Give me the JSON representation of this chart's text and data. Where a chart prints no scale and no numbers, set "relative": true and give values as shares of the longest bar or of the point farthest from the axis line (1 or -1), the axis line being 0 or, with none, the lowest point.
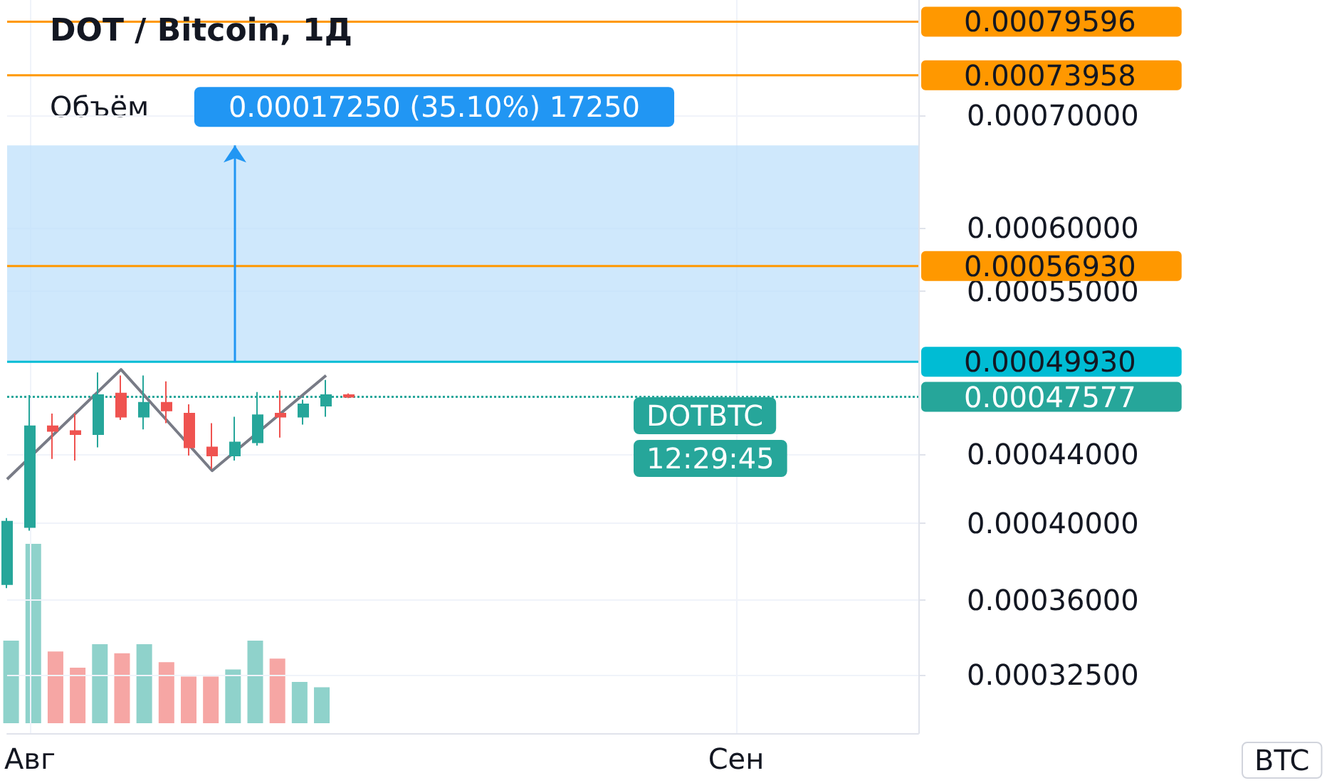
{
  "chart_data": [
    {
      "type": "candlestick",
      "title": "DOT / Bitcoin, 1Д",
      "categories": [
        null,
        "Авг",
        null,
        null,
        null,
        null,
        null,
        null,
        null,
        null,
        null,
        null,
        null,
        null,
        null,
        null,
        null,
        null,
        null,
        null,
        null,
        null,
        null,
        null,
        null,
        null,
        null,
        null,
        null,
        null,
        null,
        null,
        "Сен",
        null,
        null,
        null,
        null,
        null,
        null,
        null,
        null
      ],
      "ohlc": [
        [
          0.000368,
          0.000403,
          0.000366,
          0.000401
        ],
        [
          0.000398,
          0.000477,
          0.000396,
          0.000457
        ],
        [
          0.000457,
          0.000465,
          0.000437,
          0.000454
        ],
        [
          0.000454,
          0.000465,
          0.000436,
          0.000452
        ],
        [
          0.000452,
          0.000492,
          0.000444,
          0.000477
        ],
        [
          0.000478,
          0.00049,
          0.000461,
          0.000463
        ],
        [
          0.000463,
          0.00049,
          0.000455,
          0.000472
        ],
        [
          0.000472,
          0.000486,
          0.000459,
          0.000467
        ],
        [
          0.000465,
          0.000471,
          0.000439,
          0.000444
        ],
        [
          0.000444,
          0.000459,
          0.000431,
          0.000439
        ],
        [
          0.000439,
          0.000463,
          0.000436,
          0.000447
        ],
        [
          0.000447,
          0.000479,
          0.000445,
          0.000464
        ],
        [
          0.000465,
          0.00048,
          0.00045,
          0.000463
        ],
        [
          0.000463,
          0.000474,
          0.000458,
          0.000471
        ],
        [
          0.00047,
          0.000487,
          0.000463,
          0.000477
        ],
        [
          0.000477,
          0.000478,
          0.000475,
          0.00047577
        ],
        null,
        null,
        null,
        null,
        null,
        null,
        null,
        null,
        null,
        null,
        null,
        null,
        null,
        null,
        null,
        null,
        null,
        null,
        null,
        null,
        null,
        null,
        null,
        null,
        null
      ],
      "colors": [
        "#26a69a",
        "#26a69a",
        "#ef5350",
        "#ef5350",
        "#26a69a",
        "#ef5350",
        "#26a69a",
        "#ef5350",
        "#ef5350",
        "#ef5350",
        "#26a69a",
        "#26a69a",
        "#ef5350",
        "#26a69a",
        "#26a69a",
        "#ef5350",
        null,
        null,
        null,
        null,
        null,
        null,
        null,
        null,
        null,
        null,
        null,
        null,
        null,
        null,
        null,
        null,
        null,
        null,
        null,
        null,
        null,
        null,
        null,
        null,
        null
      ],
      "series": [
        {
          "type": "line",
          "color": "#787b86",
          "values": [
            0.000425,
            null,
            null,
            null,
            null,
            0.000494,
            null,
            null,
            null,
            0.00043,
            null,
            null,
            null,
            null,
            0.00049,
            null,
            null,
            null,
            null,
            null,
            null,
            null,
            null,
            null,
            null,
            null,
            null,
            null,
            null,
            null,
            null,
            null,
            null,
            null,
            null,
            null,
            null,
            null,
            null,
            null,
            null
          ]
        }
      ],
      "ylim": [
        0.0003,
        0.00082
      ],
      "yticks": [
        {
          "value": 0.000325,
          "label": "0.00032500"
        },
        {
          "value": 0.00036,
          "label": "0.00036000"
        },
        {
          "value": 0.0004,
          "label": "0.00040000"
        },
        {
          "value": 0.00044,
          "label": "0.00044000"
        },
        {
          "value": 0.00055,
          "label": "0.00055000"
        },
        {
          "value": 0.0006,
          "label": "0.00060000"
        },
        {
          "value": 0.0007,
          "label": "0.00070000"
        }
      ],
      "log": true,
      "grid": true,
      "ref_lines": [
        {
          "axis": "y",
          "value": 0.00079596,
          "label": "0.00079596",
          "color": "#ff9800"
        },
        {
          "axis": "y",
          "value": 0.00073958,
          "label": "0.00073958",
          "color": "#ff9800"
        },
        {
          "axis": "y",
          "value": 0.0005693,
          "label": "0.00056930",
          "color": "#ff9800"
        },
        {
          "axis": "y",
          "value": 0.0004993,
          "label": "0.00049930",
          "color": "#00bcd4"
        },
        {
          "axis": "y",
          "value": 0.00047577,
          "label": "0.00047577",
          "color": "#26a69a",
          "line_style": "dotted"
        }
      ],
      "bands": [
        {
          "axis": "y",
          "from": 0.0004993,
          "to": 0.0006718,
          "color": "#bbdefb"
        }
      ],
      "annotations": [
        "DOTBTC",
        "12:29:45",
        "BTC",
        {
          "text": "0.00017250 (35.10%) 17250",
          "y": 0.0006718
        }
      ]
    },
    {
      "type": "bar",
      "title": "Объём",
      "categories": [
        null,
        null,
        null,
        null,
        null,
        null,
        null,
        null,
        null,
        null,
        null,
        null,
        null,
        null,
        null
      ],
      "values": [
        0.46,
        1,
        0.4,
        0.31,
        0.44,
        0.39,
        0.44,
        0.34,
        0.26,
        0.26,
        0.3,
        0.46,
        0.36,
        0.23,
        0.2
      ],
      "colors": [
        "#8fd2cb",
        "#8fd2cb",
        "#f6a6a4",
        "#f6a6a4",
        "#8fd2cb",
        "#f6a6a4",
        "#8fd2cb",
        "#f6a6a4",
        "#f6a6a4",
        "#f6a6a4",
        "#8fd2cb",
        "#8fd2cb",
        "#f6a6a4",
        "#8fd2cb",
        "#8fd2cb"
      ],
      "relative": true,
      "tick_labels": false
    }
  ]
}
